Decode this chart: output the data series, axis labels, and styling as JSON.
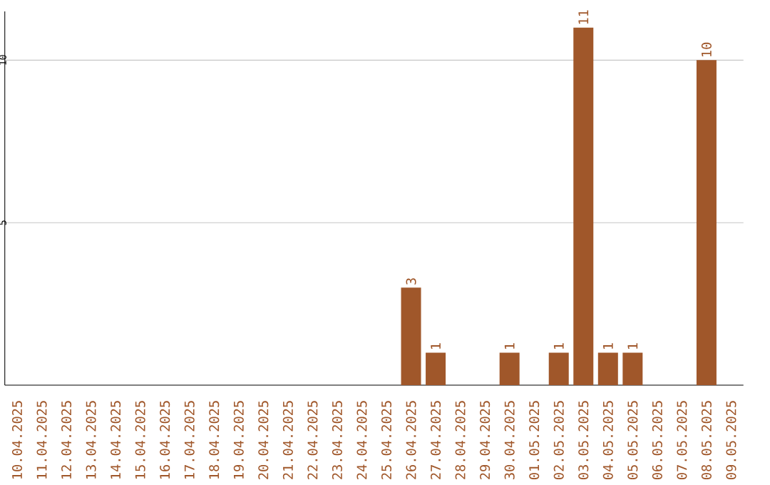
{
  "chart_data": {
    "type": "bar",
    "categories": [
      "10.04.2025",
      "11.04.2025",
      "12.04.2025",
      "13.04.2025",
      "14.04.2025",
      "15.04.2025",
      "16.04.2025",
      "17.04.2025",
      "18.04.2025",
      "19.04.2025",
      "20.04.2025",
      "21.04.2025",
      "22.04.2025",
      "23.04.2025",
      "24.04.2025",
      "25.04.2025",
      "26.04.2025",
      "27.04.2025",
      "28.04.2025",
      "29.04.2025",
      "30.04.2025",
      "01.05.2025",
      "02.05.2025",
      "03.05.2025",
      "04.05.2025",
      "05.05.2025",
      "06.05.2025",
      "07.05.2025",
      "08.05.2025",
      "09.05.2025"
    ],
    "values": [
      0,
      0,
      0,
      0,
      0,
      0,
      0,
      0,
      0,
      0,
      0,
      0,
      0,
      0,
      0,
      0,
      3,
      1,
      0,
      0,
      1,
      0,
      1,
      11,
      1,
      1,
      0,
      0,
      10,
      0
    ],
    "value_labels": [
      null,
      null,
      null,
      null,
      null,
      null,
      null,
      null,
      null,
      null,
      null,
      null,
      null,
      null,
      null,
      null,
      "3",
      "1",
      null,
      null,
      "1",
      null,
      "1",
      "11",
      "1",
      "1",
      null,
      null,
      "10",
      null
    ],
    "color": "#a0572a",
    "ylim": [
      0,
      11.5
    ],
    "yticks": [
      5,
      10
    ],
    "grid": "y"
  }
}
